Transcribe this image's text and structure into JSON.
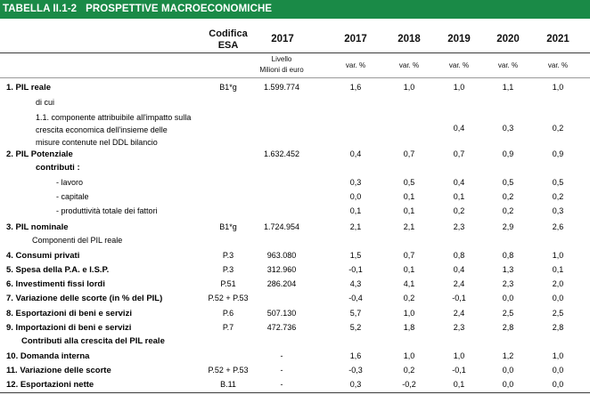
{
  "title": {
    "code": "TABELLA II.1-2",
    "text": "PROSPETTIVE MACROECONOMICHE"
  },
  "header": {
    "codifica": "Codifica",
    "esa": "ESA",
    "years": [
      "2017",
      "2017",
      "2018",
      "2019",
      "2020",
      "2021"
    ],
    "livello_line1": "Livello",
    "livello_line2": "Milioni di euro",
    "var": [
      "var. %",
      "var. %",
      "var. %",
      "var. %",
      "var. %"
    ]
  },
  "rows": [
    {
      "label": "1. PIL reale",
      "code": "B1*g",
      "level": "1.599.774",
      "v": [
        "1,6",
        "1,0",
        "1,0",
        "1,1",
        "1,0"
      ]
    },
    {
      "label": "di cui"
    },
    {
      "lines": [
        "1.1. componente attribuibile all'impatto sulla",
        "crescita economica dell'insieme delle",
        "misure contenute nel DDL bilancio"
      ],
      "v": [
        "",
        "",
        "0,4",
        "0,3",
        "0,2"
      ]
    },
    {
      "label": "2. PIL Potenziale",
      "code": "",
      "level": "1.632.452",
      "v": [
        "0,4",
        "0,7",
        "0,7",
        "0,9",
        "0,9"
      ]
    },
    {
      "label": "contributi :"
    },
    {
      "label": "- lavoro",
      "v": [
        "0,3",
        "0,5",
        "0,4",
        "0,5",
        "0,5"
      ]
    },
    {
      "label": "- capitale",
      "v": [
        "0,0",
        "0,1",
        "0,1",
        "0,2",
        "0,2"
      ]
    },
    {
      "label": "- produttività totale dei fattori",
      "v": [
        "0,1",
        "0,1",
        "0,2",
        "0,2",
        "0,3"
      ]
    },
    {
      "label": "3. PIL nominale",
      "code": "B1*g",
      "level": "1.724.954",
      "v": [
        "2,1",
        "2,1",
        "2,3",
        "2,9",
        "2,6"
      ]
    },
    {
      "label": "Componenti del PIL reale"
    },
    {
      "label": "4. Consumi privati",
      "code": "P.3",
      "level": "963.080",
      "v": [
        "1,5",
        "0,7",
        "0,8",
        "0,8",
        "1,0"
      ]
    },
    {
      "label": "5. Spesa della P.A. e I.S.P.",
      "code": "P.3",
      "level": "312.960",
      "v": [
        "-0,1",
        "0,1",
        "0,4",
        "1,3",
        "0,1"
      ]
    },
    {
      "label": "6. Investimenti fissi lordi",
      "code": "P.51",
      "level": "286.204",
      "v": [
        "4,3",
        "4,1",
        "2,4",
        "2,3",
        "2,0"
      ]
    },
    {
      "label": "7. Variazione delle scorte (in % del PIL)",
      "code": "P.52 + P.53",
      "level": "",
      "v": [
        "-0,4",
        "0,2",
        "-0,1",
        "0,0",
        "0,0"
      ]
    },
    {
      "label": "8. Esportazioni di beni e servizi",
      "code": "P.6",
      "level": "507.130",
      "v": [
        "5,7",
        "1,0",
        "2,4",
        "2,5",
        "2,5"
      ]
    },
    {
      "label": "9. Importazioni di beni e servizi",
      "code": "P.7",
      "level": "472.736",
      "v": [
        "5,2",
        "1,8",
        "2,3",
        "2,8",
        "2,8"
      ]
    },
    {
      "label": "Contributi alla crescita del PIL reale"
    },
    {
      "label": "10. Domanda interna",
      "code": "",
      "level": "-",
      "v": [
        "1,6",
        "1,0",
        "1,0",
        "1,2",
        "1,0"
      ]
    },
    {
      "label": "11. Variazione delle scorte",
      "code": "P.52 + P.53",
      "level": "-",
      "v": [
        "-0,3",
        "0,2",
        "-0,1",
        "0,0",
        "0,0"
      ]
    },
    {
      "label": "12. Esportazioni nette",
      "code": "B.11",
      "level": "-",
      "v": [
        "0,3",
        "-0,2",
        "0,1",
        "0,0",
        "0,0"
      ]
    }
  ]
}
